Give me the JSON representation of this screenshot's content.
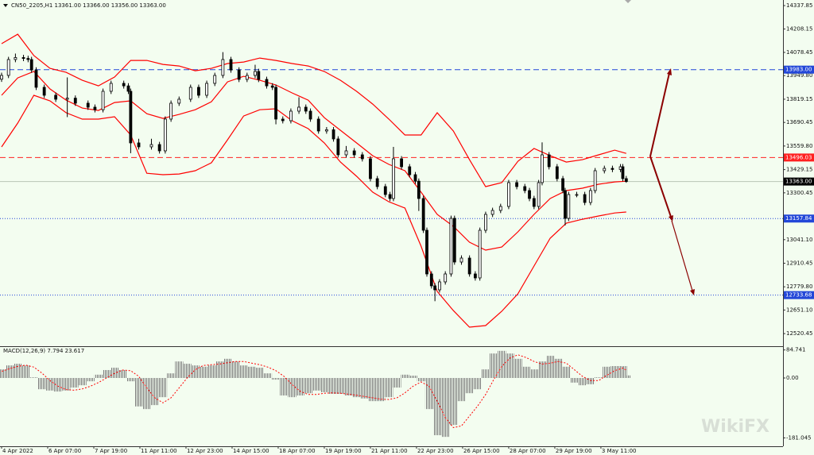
{
  "chart_data": {
    "type": "candlestick",
    "title": "CN50_2205,H1  13361.00 13366.00 13356.00 13363.00",
    "x": [
      0,
      6,
      12,
      19,
      23,
      26,
      30,
      37,
      47,
      57,
      64,
      75,
      81,
      88,
      95,
      106,
      110,
      112,
      119,
      130,
      137,
      142,
      147,
      154,
      164,
      171,
      178,
      185,
      192,
      199,
      206,
      213,
      220,
      223,
      230,
      235,
      238,
      244,
      251,
      258,
      264,
      268,
      275,
      282,
      288,
      292,
      299,
      306,
      313,
      320,
      326,
      333,
      337,
      340,
      347,
      354,
      359,
      362,
      366,
      369,
      373,
      376,
      380,
      385,
      390,
      393,
      399,
      406,
      411,
      415,
      420,
      426,
      433,
      440,
      447,
      454,
      458,
      462,
      466,
      469,
      475,
      482,
      487,
      489,
      492,
      499,
      506,
      511,
      515,
      523,
      530,
      537,
      539,
      542
    ],
    "open": [
      13930,
      13951,
      14039,
      14050,
      14045,
      14039,
      13981,
      13885,
      13841,
      13819,
      13825,
      13797,
      13775,
      13761,
      13863,
      13907,
      13893,
      13863,
      13577,
      13555,
      13568,
      13533,
      13709,
      13797,
      13819,
      13885,
      13841,
      13907,
      13951,
      14039,
      13981,
      13929,
      13951,
      13973,
      13929,
      13893,
      13885,
      13709,
      13700,
      13753,
      13775,
      13753,
      13709,
      13643,
      13650,
      13599,
      13511,
      13533,
      13511,
      13489,
      13379,
      13335,
      13291,
      13269,
      13489,
      13445,
      13401,
      13365,
      13269,
      13093,
      12851,
      12785,
      12763,
      12807,
      12851,
      13159,
      12917,
      12939,
      12851,
      12829,
      13093,
      13181,
      13203,
      13225,
      13357,
      13335,
      13313,
      13269,
      13225,
      13357,
      13511,
      13445,
      13379,
      13313,
      13159,
      13291,
      13291,
      13247,
      13313,
      13423,
      13436,
      13430,
      13445,
      13379
    ],
    "high": [
      13966,
      14054,
      14072,
      14065,
      14060,
      14054,
      13996,
      13900,
      13856,
      13940,
      13840,
      13812,
      13790,
      13878,
      13922,
      13922,
      13908,
      13878,
      13600,
      13600,
      13583,
      13724,
      13812,
      13834,
      13900,
      13900,
      13922,
      13966,
      14080,
      14054,
      13996,
      13966,
      14010,
      13988,
      13944,
      13908,
      13900,
      13724,
      13768,
      13830,
      13790,
      13768,
      13724,
      13665,
      13665,
      13614,
      13560,
      13548,
      13526,
      13504,
      13394,
      13350,
      13306,
      13555,
      13504,
      13460,
      13416,
      13380,
      13284,
      13108,
      12866,
      12800,
      12822,
      12866,
      13174,
      13174,
      12954,
      12954,
      12866,
      13108,
      13196,
      13218,
      13240,
      13372,
      13372,
      13350,
      13328,
      13284,
      13372,
      13580,
      13526,
      13460,
      13394,
      13328,
      13306,
      13306,
      13306,
      13328,
      13438,
      13451,
      13451,
      13460,
      13460,
      13394
    ],
    "low": [
      13915,
      13936,
      14024,
      14030,
      14024,
      13966,
      13870,
      13826,
      13804,
      13720,
      13782,
      13760,
      13746,
      13746,
      13848,
      13878,
      13848,
      13520,
      13540,
      13540,
      13518,
      13518,
      13694,
      13782,
      13804,
      13826,
      13826,
      13892,
      13936,
      13966,
      13914,
      13914,
      13936,
      13914,
      13878,
      13870,
      13680,
      13685,
      13685,
      13738,
      13738,
      13694,
      13628,
      13628,
      13584,
      13496,
      13496,
      13496,
      13474,
      13364,
      13320,
      13276,
      13254,
      13254,
      13430,
      13386,
      13350,
      13200,
      13078,
      12836,
      12770,
      12700,
      12748,
      12792,
      12836,
      12902,
      12902,
      12836,
      12814,
      12814,
      13078,
      13166,
      13188,
      13210,
      13320,
      13298,
      13254,
      13210,
      13210,
      13342,
      13430,
      13364,
      13298,
      13120,
      13144,
      13276,
      13232,
      13232,
      13298,
      13408,
      13415,
      13415,
      13364,
      13356
    ],
    "close": [
      13951,
      14039,
      14050,
      14045,
      14039,
      13981,
      13885,
      13841,
      13819,
      13825,
      13797,
      13775,
      13761,
      13863,
      13907,
      13893,
      13863,
      13577,
      13555,
      13568,
      13533,
      13709,
      13797,
      13819,
      13885,
      13841,
      13907,
      13951,
      14039,
      13981,
      13929,
      13951,
      13973,
      13929,
      13893,
      13885,
      13709,
      13700,
      13753,
      13775,
      13753,
      13709,
      13643,
      13650,
      13599,
      13511,
      13533,
      13511,
      13489,
      13379,
      13335,
      13291,
      13269,
      13489,
      13445,
      13401,
      13365,
      13269,
      13093,
      12851,
      12785,
      12763,
      12807,
      12851,
      13159,
      12917,
      12939,
      12851,
      12829,
      13093,
      13181,
      13203,
      13225,
      13357,
      13335,
      13313,
      13269,
      13225,
      13357,
      13511,
      13445,
      13379,
      13313,
      13159,
      13291,
      13291,
      13247,
      13313,
      13423,
      13436,
      13430,
      13445,
      13379,
      13363
    ],
    "up_color": "#ffffff",
    "down_color": "#000000",
    "xlim": [
      0,
      678
    ],
    "xticks": [
      {
        "value": 0,
        "label": "4 Apr 2022"
      },
      {
        "value": 40,
        "label": "6 Apr 07:00"
      },
      {
        "value": 80,
        "label": "7 Apr 19:00"
      },
      {
        "value": 120,
        "label": "11 Apr 11:00"
      },
      {
        "value": 160,
        "label": "12 Apr 23:00"
      },
      {
        "value": 200,
        "label": "14 Apr 15:00"
      },
      {
        "value": 240,
        "label": "18 Apr 07:00"
      },
      {
        "value": 280,
        "label": "19 Apr 19:00"
      },
      {
        "value": 320,
        "label": "21 Apr 11:00"
      },
      {
        "value": 360,
        "label": "22 Apr 23:00"
      },
      {
        "value": 400,
        "label": "26 Apr 15:00"
      },
      {
        "value": 440,
        "label": "28 Apr 07:00"
      },
      {
        "value": 480,
        "label": "29 Apr 19:00"
      },
      {
        "value": 520,
        "label": "3 May 11:00"
      }
    ],
    "ylim": [
      12455,
      14360
    ],
    "yticks": [
      {
        "value": 14337.85,
        "label": "14337.85"
      },
      {
        "value": 14208.15,
        "label": "14208.15"
      },
      {
        "value": 14078.45,
        "label": "14078.45"
      },
      {
        "value": 13949.8,
        "label": "13949.80"
      },
      {
        "value": 13819.15,
        "label": "13819.15"
      },
      {
        "value": 13690.45,
        "label": "13690.45"
      },
      {
        "value": 13559.8,
        "label": "13559.80"
      },
      {
        "value": 13429.15,
        "label": "13429.15"
      },
      {
        "value": 13300.45,
        "label": "13300.45"
      },
      {
        "value": 13041.1,
        "label": "13041.10"
      },
      {
        "value": 12910.45,
        "label": "12910.45"
      },
      {
        "value": 12779.8,
        "label": "12779.80"
      },
      {
        "value": 12651.1,
        "label": "12651.10"
      },
      {
        "value": 12520.45,
        "label": "12520.45"
      }
    ],
    "bands": {
      "x": [
        0,
        14,
        28,
        42,
        56,
        70,
        84,
        98,
        112,
        126,
        140,
        154,
        168,
        182,
        196,
        210,
        224,
        238,
        252,
        266,
        280,
        294,
        308,
        322,
        336,
        350,
        364,
        378,
        392,
        406,
        420,
        434,
        448,
        462,
        476,
        490,
        504,
        518,
        532,
        542
      ],
      "series": [
        {
          "color": "#ff0000",
          "values": [
            14127,
            14179,
            14061,
            13990,
            13968,
            13924,
            13893,
            13942,
            14034,
            14034,
            14012,
            14003,
            13977,
            13990,
            14017,
            14025,
            14047,
            14034,
            14017,
            14003,
            13973,
            13924,
            13863,
            13792,
            13709,
            13621,
            13621,
            13744,
            13643,
            13484,
            13335,
            13357,
            13475,
            13546,
            13506,
            13471,
            13484,
            13511,
            13537,
            13519
          ]
        },
        {
          "color": "#ff0000",
          "values": [
            13841,
            13937,
            13973,
            13876,
            13814,
            13770,
            13757,
            13801,
            13810,
            13739,
            13713,
            13735,
            13761,
            13805,
            13915,
            13946,
            13924,
            13898,
            13854,
            13814,
            13717,
            13647,
            13577,
            13506,
            13458,
            13423,
            13304,
            13181,
            13115,
            13027,
            12983,
            13000,
            13084,
            13181,
            13269,
            13313,
            13326,
            13348,
            13361,
            13365
          ]
        },
        {
          "color": "#ff0000",
          "values": [
            13555,
            13687,
            13841,
            13810,
            13744,
            13709,
            13709,
            13722,
            13621,
            13409,
            13401,
            13405,
            13423,
            13467,
            13594,
            13726,
            13761,
            13766,
            13700,
            13656,
            13577,
            13471,
            13392,
            13304,
            13251,
            13216,
            13005,
            12754,
            12648,
            12556,
            12565,
            12644,
            12741,
            12895,
            13049,
            13132,
            13154,
            13172,
            13189,
            13194
          ]
        }
      ]
    },
    "levels": [
      {
        "value": 13983.0,
        "label": "13983.00",
        "color": "#2347d8",
        "style": "dashed"
      },
      {
        "value": 13496.03,
        "label": "13496.03",
        "color": "#ff2020",
        "style": "dashed"
      },
      {
        "value": 13363.0,
        "label": "13363.00",
        "color": "#000000",
        "style": "solid"
      },
      {
        "value": 13157.84,
        "label": "13157.84",
        "color": "#2347d8",
        "style": "dotted"
      },
      {
        "value": 12733.68,
        "label": "12733.68",
        "color": "#2347d8",
        "style": "dotted"
      }
    ],
    "macd": {
      "title": "MACD(12,26,9) 7.794 23.617",
      "x": [
        0,
        7,
        14,
        21,
        28,
        35,
        42,
        49,
        56,
        63,
        70,
        77,
        84,
        91,
        98,
        105,
        112,
        119,
        126,
        133,
        140,
        147,
        154,
        161,
        168,
        175,
        182,
        189,
        196,
        203,
        210,
        217,
        224,
        231,
        238,
        245,
        252,
        259,
        266,
        273,
        280,
        287,
        294,
        301,
        308,
        315,
        322,
        329,
        336,
        343,
        350,
        357,
        364,
        371,
        378,
        385,
        392,
        399,
        406,
        413,
        420,
        427,
        434,
        441,
        448,
        455,
        462,
        469,
        476,
        483,
        490,
        497,
        504,
        511,
        518,
        525,
        532,
        539,
        542
      ],
      "histogram": [
        26,
        38,
        43,
        38,
        2,
        -34,
        -38,
        -41,
        -38,
        -29,
        -22,
        -10,
        10,
        24,
        31,
        24,
        -10,
        -86,
        -94,
        -82,
        -58,
        14,
        50,
        43,
        38,
        34,
        38,
        50,
        58,
        50,
        38,
        34,
        31,
        14,
        -5,
        -53,
        -58,
        -53,
        -46,
        -38,
        -43,
        -48,
        -48,
        -53,
        -58,
        -62,
        -70,
        -70,
        -58,
        -29,
        10,
        7,
        -10,
        -94,
        -173,
        -178,
        -142,
        -70,
        -46,
        -34,
        26,
        74,
        82,
        74,
        58,
        34,
        26,
        50,
        67,
        58,
        34,
        -14,
        -22,
        -19,
        2,
        34,
        36,
        36,
        7.794
      ],
      "signal": [
        20,
        28,
        35,
        39,
        33,
        15,
        -8,
        -25,
        -35,
        -37,
        -33,
        -25,
        -14,
        0,
        14,
        24,
        22,
        5,
        -30,
        -60,
        -75,
        -60,
        -30,
        0,
        25,
        38,
        40,
        42,
        46,
        50,
        50,
        45,
        40,
        33,
        22,
        5,
        -20,
        -40,
        -50,
        -50,
        -46,
        -45,
        -46,
        -49,
        -52,
        -56,
        -60,
        -64,
        -65,
        -60,
        -45,
        -25,
        -12,
        -25,
        -70,
        -120,
        -150,
        -145,
        -115,
        -85,
        -50,
        -5,
        35,
        60,
        70,
        62,
        50,
        42,
        45,
        50,
        45,
        25,
        5,
        -8,
        -8,
        8,
        22,
        30,
        23.617
      ],
      "color": "#808080",
      "signal_color": "#ff0000",
      "ylim": [
        -206.4,
        93.6
      ],
      "yticks": [
        84.741,
        {
          "value": 0,
          "label": "0.00"
        },
        -181.045
      ]
    },
    "watermark": "WikiFX"
  }
}
